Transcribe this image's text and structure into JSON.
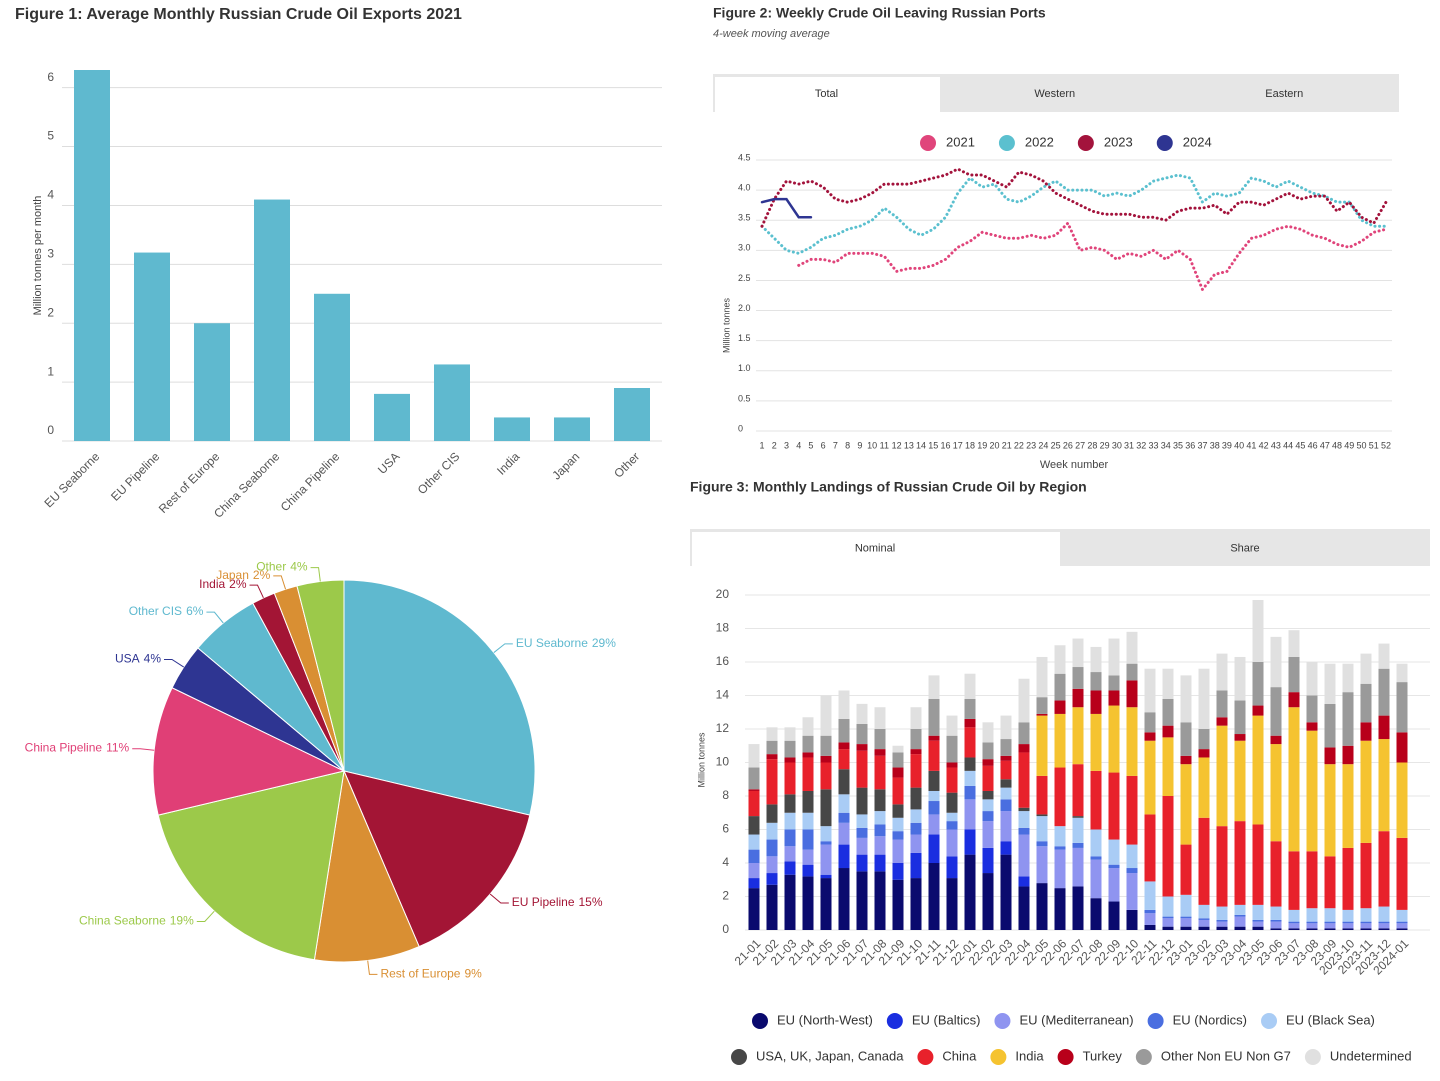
{
  "chart_data": [
    {
      "type": "bar",
      "title": "Figure 1: Average Monthly Russian Crude Oil Exports 2021",
      "y_label": "Million tonnes per month",
      "categories": [
        "EU Seaborne",
        "EU Pipeline",
        "Rest of Europe",
        "China Seaborne",
        "China Pipeline",
        "USA",
        "Other CIS",
        "India",
        "Japan",
        "Other"
      ],
      "values": [
        6.3,
        3.2,
        2.0,
        4.1,
        2.5,
        0.8,
        1.3,
        0.4,
        0.4,
        0.9
      ],
      "color": "#5fb9cf",
      "ylim": [
        0,
        6.3
      ],
      "yticks": [
        0,
        1,
        2,
        3,
        4,
        5,
        6
      ],
      "grid": true
    },
    {
      "type": "pie",
      "categories": [
        "EU Seaborne",
        "EU Pipeline",
        "Rest of Europe",
        "China Seaborne",
        "China Pipeline",
        "USA",
        "Other CIS",
        "India",
        "Japan",
        "Other"
      ],
      "values": [
        29,
        15,
        9,
        19,
        11,
        4,
        6,
        2,
        2,
        4
      ],
      "value_labels": [
        "29%",
        "15%",
        "9%",
        "19%",
        "11%",
        "4%",
        "6%",
        "2%",
        "2%",
        "4%"
      ],
      "colors": [
        "#5fb9cf",
        "#a31535",
        "#d98f33",
        "#9cc94a",
        "#e03f76",
        "#2e3592",
        "#5fb9cf",
        "#a31535",
        "#d98f33",
        "#9cc94a"
      ]
    },
    {
      "type": "line",
      "title": "Figure 2: Weekly Crude Oil Leaving Russian Ports",
      "subtitle": "4-week moving average",
      "tabs": [
        "Total",
        "Western",
        "Eastern"
      ],
      "y_label": "Million tonnes",
      "x_label": "Week number",
      "x": [
        1,
        2,
        3,
        4,
        5,
        6,
        7,
        8,
        9,
        10,
        11,
        12,
        13,
        14,
        15,
        16,
        17,
        18,
        19,
        20,
        21,
        22,
        23,
        24,
        25,
        26,
        27,
        28,
        29,
        30,
        31,
        32,
        33,
        34,
        35,
        36,
        37,
        38,
        39,
        40,
        41,
        42,
        43,
        44,
        45,
        46,
        47,
        48,
        49,
        50,
        51,
        52
      ],
      "xlim": [
        1,
        52
      ],
      "xticks": [
        1,
        2,
        3,
        4,
        5,
        6,
        7,
        8,
        9,
        10,
        11,
        12,
        13,
        14,
        15,
        16,
        17,
        18,
        19,
        20,
        21,
        22,
        23,
        24,
        25,
        26,
        27,
        28,
        29,
        30,
        31,
        32,
        33,
        34,
        35,
        36,
        37,
        38,
        39,
        40,
        41,
        42,
        43,
        44,
        45,
        46,
        47,
        48,
        49,
        50,
        51,
        52
      ],
      "ylim": [
        0,
        4.5
      ],
      "yticks": [
        0,
        0.5,
        {
          "value": 1,
          "label": "1.0"
        },
        1.5,
        {
          "value": 2,
          "label": "2.0"
        },
        2.5,
        {
          "value": 3,
          "label": "3.0"
        },
        3.5,
        {
          "value": 4,
          "label": "4.0"
        },
        4.5
      ],
      "grid": true,
      "series": [
        {
          "name": "2021",
          "color": "#e0457b",
          "line_style": "dotted",
          "values": [
            null,
            null,
            null,
            2.75,
            2.85,
            2.85,
            2.8,
            2.95,
            2.95,
            2.95,
            2.9,
            2.65,
            2.7,
            2.7,
            2.75,
            2.85,
            3.05,
            3.15,
            3.3,
            3.25,
            3.2,
            3.2,
            3.25,
            3.2,
            3.25,
            3.45,
            3.0,
            3.05,
            3.0,
            2.85,
            2.95,
            2.9,
            3.0,
            2.85,
            3.0,
            2.85,
            2.35,
            2.6,
            2.65,
            2.95,
            3.2,
            3.25,
            3.35,
            3.4,
            3.35,
            3.25,
            3.2,
            3.1,
            3.05,
            3.15,
            3.3,
            3.35
          ]
        },
        {
          "name": "2022",
          "color": "#5bc0cf",
          "line_style": "dotted",
          "values": [
            3.4,
            3.2,
            3.0,
            2.95,
            3.05,
            3.2,
            3.25,
            3.35,
            3.4,
            3.5,
            3.7,
            3.55,
            3.35,
            3.25,
            3.35,
            3.55,
            3.95,
            4.2,
            4.05,
            4.1,
            3.85,
            3.8,
            3.9,
            4.05,
            4.15,
            4.0,
            4.0,
            4.0,
            3.9,
            3.95,
            3.9,
            4.0,
            4.15,
            4.2,
            4.25,
            4.2,
            3.8,
            3.95,
            3.9,
            3.95,
            4.2,
            4.15,
            4.05,
            4.15,
            4.05,
            3.95,
            3.9,
            3.8,
            3.8,
            3.5,
            3.4,
            3.4
          ]
        },
        {
          "name": "2023",
          "color": "#a3133c",
          "line_style": "dotted",
          "values": [
            3.4,
            3.85,
            4.15,
            4.1,
            4.15,
            4.05,
            3.85,
            3.8,
            3.85,
            3.95,
            4.1,
            4.1,
            4.1,
            4.15,
            4.2,
            4.25,
            4.35,
            4.25,
            4.25,
            4.15,
            4.05,
            4.3,
            4.25,
            4.15,
            3.95,
            3.85,
            3.75,
            3.65,
            3.6,
            3.6,
            3.6,
            3.55,
            3.55,
            3.5,
            3.65,
            3.7,
            3.7,
            3.75,
            3.6,
            3.8,
            3.8,
            3.75,
            3.85,
            3.95,
            3.85,
            3.9,
            3.9,
            3.65,
            3.8,
            3.55,
            3.45,
            3.8
          ]
        },
        {
          "name": "2024",
          "color": "#2e3592",
          "line_style": "solid",
          "values": [
            3.8,
            3.85,
            3.85,
            3.55,
            3.55,
            null,
            null,
            null,
            null,
            null,
            null,
            null,
            null,
            null,
            null,
            null,
            null,
            null,
            null,
            null,
            null,
            null,
            null,
            null,
            null,
            null,
            null,
            null,
            null,
            null,
            null,
            null,
            null,
            null,
            null,
            null,
            null,
            null,
            null,
            null,
            null,
            null,
            null,
            null,
            null,
            null,
            null,
            null,
            null,
            null,
            null,
            null
          ]
        }
      ]
    },
    {
      "type": "stacked_bar",
      "title": "Figure 3: Monthly Landings of Russian Crude Oil by Region",
      "tabs": [
        "Nominal",
        "Share"
      ],
      "y_label": "Million tonnes",
      "categories": [
        "21-01",
        "21-02",
        "21-03",
        "21-04",
        "21-05",
        "21-06",
        "21-07",
        "21-08",
        "21-09",
        "21-10",
        "21-11",
        "21-12",
        "22-01",
        "22-02",
        "22-03",
        "22-04",
        "22-05",
        "22-06",
        "22-07",
        "22-08",
        "22-09",
        "22-10",
        "22-11",
        "22-12",
        "23-01",
        "23-02",
        "23-03",
        "23-04",
        "23-05",
        "23-06",
        "23-07",
        "23-08",
        "23-09",
        "2023-10",
        "2023-11",
        "2023-12",
        "2024-01"
      ],
      "ylim": [
        0,
        20
      ],
      "yticks": [
        0,
        2,
        4,
        6,
        8,
        10,
        12,
        14,
        16,
        18,
        20
      ],
      "grid": true,
      "series": [
        {
          "name": "EU (North-West)",
          "color": "#0a0a6e",
          "values": [
            2.5,
            2.7,
            3.3,
            3.2,
            3.1,
            3.7,
            3.5,
            3.5,
            3.0,
            3.1,
            4.0,
            3.1,
            4.5,
            3.4,
            4.5,
            2.6,
            2.8,
            2.5,
            2.6,
            1.9,
            1.7,
            1.2,
            0.3,
            0.2,
            0.2,
            0.2,
            0.2,
            0.2,
            0.2,
            0.1,
            0.1,
            0.1,
            0.1,
            0.1,
            0.1,
            0.1,
            0.1
          ]
        },
        {
          "name": "EU (Baltics)",
          "color": "#1a2ee0",
          "values": [
            0.6,
            0.7,
            0.8,
            0.7,
            0.2,
            1.4,
            1.0,
            1.0,
            1.0,
            1.5,
            1.7,
            1.3,
            1.5,
            1.5,
            0.8,
            0.6,
            0,
            0,
            0,
            0,
            0,
            0,
            0,
            0,
            0,
            0,
            0,
            0,
            0,
            0,
            0,
            0,
            0,
            0,
            0,
            0,
            0
          ]
        },
        {
          "name": "EU (Mediterranean)",
          "color": "#8f94f0",
          "values": [
            0.9,
            1.0,
            0.9,
            0.9,
            1.8,
            1.3,
            1.0,
            1.1,
            1.4,
            1.1,
            1.2,
            1.6,
            1.8,
            1.6,
            1.8,
            2.5,
            2.2,
            2.3,
            2.3,
            2.3,
            2.0,
            2.2,
            0.7,
            0.5,
            0.5,
            0.4,
            0.3,
            0.6,
            0.3,
            0.4,
            0.3,
            0.3,
            0.3,
            0.3,
            0.3,
            0.3,
            0.3
          ]
        },
        {
          "name": "EU (Nordics)",
          "color": "#4a6ee0",
          "values": [
            0.8,
            1.0,
            1.0,
            1.2,
            0.2,
            0.6,
            0.6,
            0.7,
            0.5,
            0.7,
            0.8,
            0.5,
            0.8,
            0.6,
            0.7,
            0.4,
            0.3,
            0.2,
            0.3,
            0.2,
            0.2,
            0.3,
            0.2,
            0.1,
            0.1,
            0.1,
            0.1,
            0.1,
            0.1,
            0.1,
            0.1,
            0.1,
            0.1,
            0.1,
            0.1,
            0.1,
            0.1
          ]
        },
        {
          "name": "EU (Black Sea)",
          "color": "#a9ccf5",
          "values": [
            0.9,
            1.0,
            1.0,
            1.0,
            0.9,
            1.1,
            0.8,
            0.8,
            0.8,
            0.8,
            0.6,
            0.5,
            0.9,
            0.7,
            0.7,
            1.0,
            1.5,
            1.2,
            1.5,
            1.6,
            1.5,
            1.4,
            1.7,
            1.2,
            1.3,
            0.8,
            0.8,
            0.6,
            0.9,
            0.8,
            0.7,
            0.8,
            0.8,
            0.7,
            0.8,
            0.9,
            0.7
          ]
        },
        {
          "name": "USA, UK, Japan, Canada",
          "color": "#474747",
          "values": [
            1.1,
            1.1,
            1.1,
            1.3,
            2.2,
            1.5,
            1.6,
            1.3,
            0.8,
            1.3,
            1.2,
            1.2,
            0.8,
            0.5,
            0.5,
            0.2,
            0.1,
            0,
            0.1,
            0,
            0,
            0,
            0,
            0,
            0,
            0,
            0,
            0,
            0,
            0,
            0,
            0,
            0,
            0,
            0,
            0,
            0
          ]
        },
        {
          "name": "China",
          "color": "#e8212b",
          "values": [
            1.5,
            2.7,
            1.9,
            2.0,
            1.6,
            1.2,
            2.2,
            2.0,
            1.6,
            2.0,
            1.8,
            1.5,
            1.8,
            1.5,
            1.1,
            3.3,
            2.3,
            3.5,
            3.1,
            3.5,
            4.0,
            4.1,
            4.0,
            6.0,
            3.0,
            5.2,
            4.8,
            5.0,
            4.8,
            3.9,
            3.5,
            3.4,
            3.1,
            3.7,
            3.9,
            4.5,
            4.3
          ]
        },
        {
          "name": "India",
          "color": "#f5c330",
          "values": [
            0,
            0,
            0,
            0,
            0,
            0,
            0,
            0,
            0,
            0,
            0,
            0,
            0,
            0,
            0,
            0,
            3.6,
            3.2,
            3.4,
            3.4,
            4.0,
            4.1,
            4.4,
            3.5,
            4.8,
            3.6,
            6.0,
            4.8,
            6.5,
            5.8,
            8.6,
            7.2,
            5.5,
            5.0,
            6.1,
            5.5,
            4.5
          ]
        },
        {
          "name": "Turkey",
          "color": "#b8001a",
          "values": [
            0.1,
            0.3,
            0.3,
            0.3,
            0.4,
            0.4,
            0.4,
            0.4,
            0.6,
            0.3,
            0.3,
            0.3,
            0.5,
            0.4,
            0.3,
            0.5,
            0.1,
            0.8,
            1.1,
            1.4,
            0.9,
            1.6,
            0.5,
            0.7,
            0.5,
            0.5,
            0.5,
            0.4,
            0.6,
            0.5,
            0.9,
            0.5,
            1.0,
            1.1,
            1.1,
            1.4,
            1.8
          ]
        },
        {
          "name": "Other Non EU Non G7",
          "color": "#9a9a9a",
          "values": [
            1.3,
            0.8,
            1.0,
            1.0,
            1.2,
            1.4,
            1.2,
            1.2,
            0.9,
            1.2,
            2.2,
            1.6,
            1.2,
            1.0,
            1.0,
            1.3,
            1.0,
            1.6,
            1.3,
            1.1,
            0.9,
            1.0,
            1.2,
            1.6,
            2.0,
            1.2,
            1.6,
            2.0,
            2.6,
            2.9,
            2.1,
            1.6,
            2.6,
            3.2,
            2.3,
            2.8,
            3.0
          ]
        },
        {
          "name": "Undetermined",
          "color": "#e0e0e0",
          "values": [
            1.4,
            0.8,
            0.8,
            1.1,
            2.4,
            1.7,
            1.2,
            1.3,
            0.4,
            1.3,
            1.4,
            1.2,
            1.5,
            1.2,
            1.4,
            2.6,
            2.4,
            1.7,
            1.7,
            1.5,
            2.2,
            1.9,
            2.6,
            1.8,
            2.8,
            3.6,
            2.2,
            2.6,
            3.7,
            3.0,
            1.6,
            2.0,
            2.4,
            1.7,
            1.8,
            1.5,
            1.1
          ]
        }
      ]
    }
  ]
}
